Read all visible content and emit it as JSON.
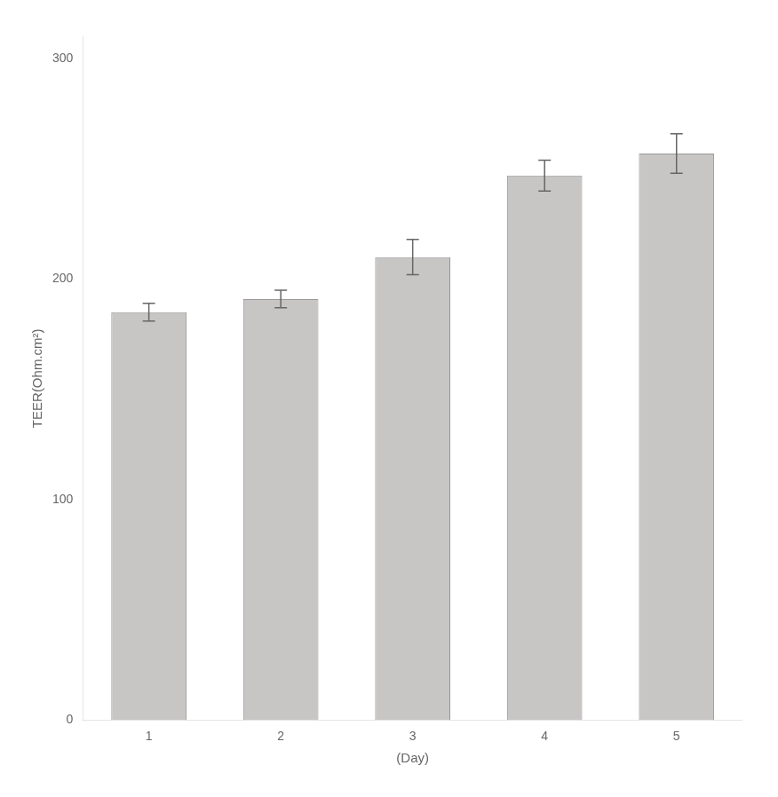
{
  "chart_data": {
    "type": "bar",
    "categories": [
      "1",
      "2",
      "3",
      "4",
      "5"
    ],
    "values": [
      185,
      191,
      210,
      247,
      257
    ],
    "errors": [
      4,
      4,
      8,
      7,
      9
    ],
    "color": "#c8c5c5",
    "xlabel": "(Day)",
    "ylabel": "TEER(Ohm.cm²)",
    "ylim": [
      0,
      310
    ],
    "yticks": [
      0,
      100,
      200,
      300
    ],
    "grid": false
  }
}
